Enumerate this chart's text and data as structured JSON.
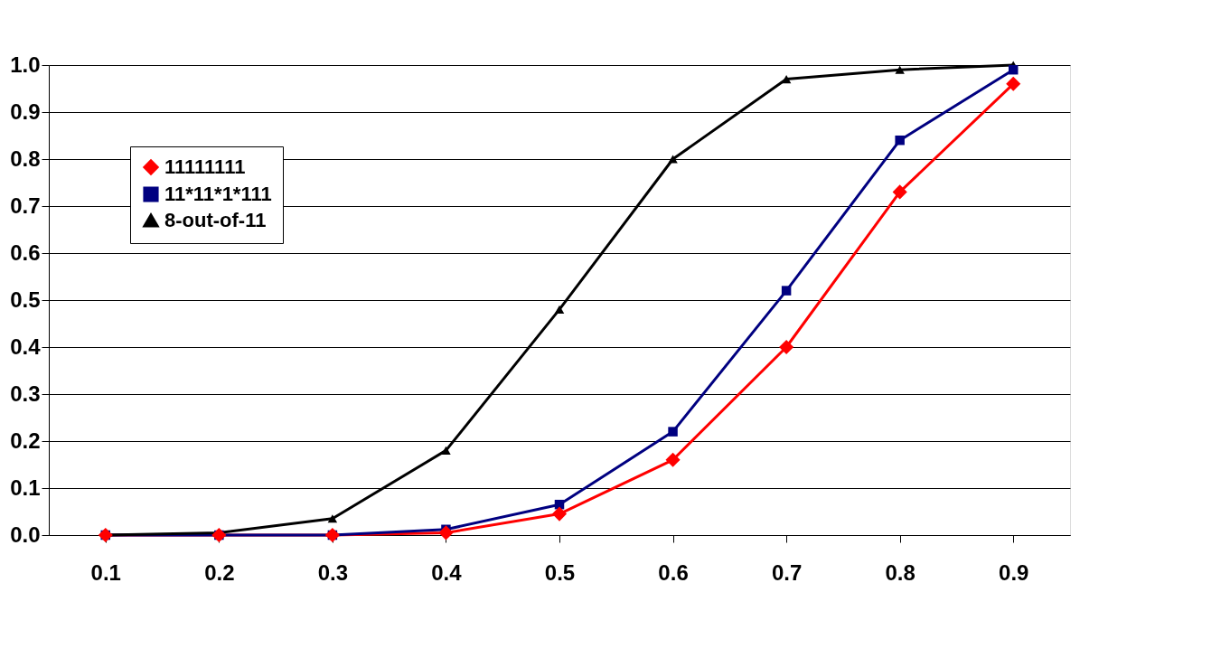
{
  "chart_data": {
    "type": "line",
    "categories": [
      "0.1",
      "0.2",
      "0.3",
      "0.4",
      "0.5",
      "0.6",
      "0.7",
      "0.8",
      "0.9"
    ],
    "series": [
      {
        "name": "11111111",
        "color": "#ff0000",
        "marker": "diamond",
        "values": [
          0,
          0,
          0,
          0.005,
          0.045,
          0.16,
          0.4,
          0.73,
          0.96
        ]
      },
      {
        "name": "11*11*1*111",
        "color": "#000080",
        "marker": "square",
        "values": [
          0,
          0,
          0,
          0.012,
          0.065,
          0.22,
          0.52,
          0.84,
          0.99
        ]
      },
      {
        "name": "8-out-of-11",
        "color": "#000000",
        "marker": "triangle",
        "values": [
          0,
          0.005,
          0.035,
          0.18,
          0.48,
          0.8,
          0.97,
          0.99,
          1.0
        ]
      }
    ],
    "ylim": [
      0,
      1
    ],
    "yticks": [
      {
        "value": 0,
        "label": "0.0"
      },
      0.1,
      0.2,
      0.3,
      0.4,
      0.5,
      0.6,
      0.7,
      0.8,
      0.9,
      {
        "value": 1,
        "label": "1.0"
      }
    ],
    "grid": "y",
    "legend": "top left",
    "line_style": "solid"
  }
}
